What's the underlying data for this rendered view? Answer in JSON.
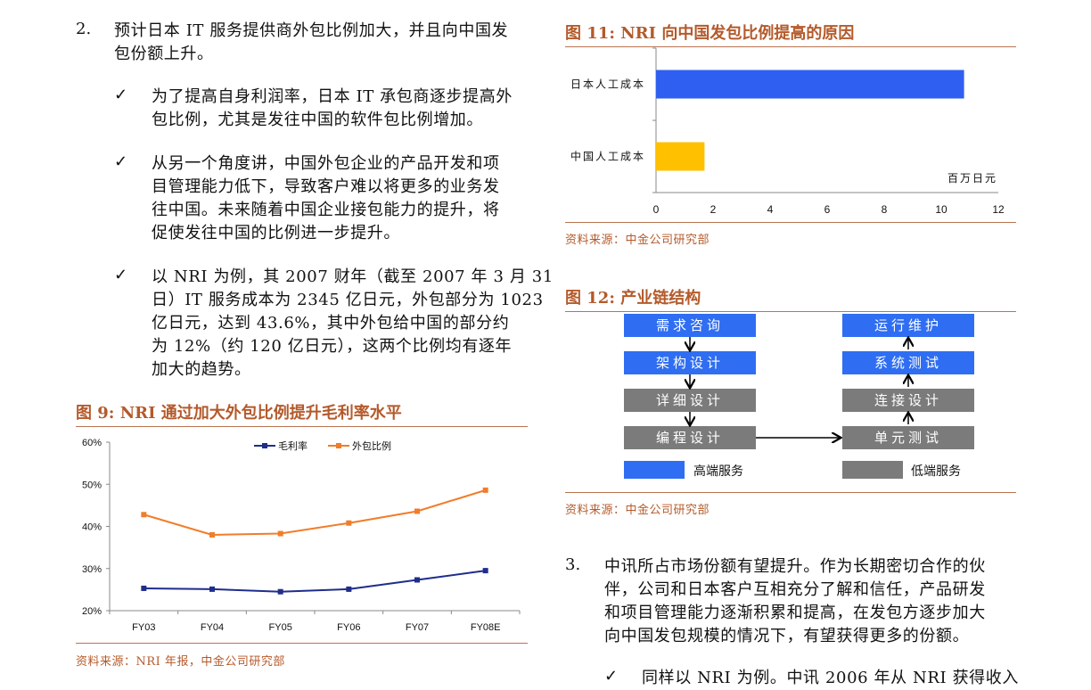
{
  "left": {
    "item2": {
      "number": "2.",
      "line1": "预计日本 IT 服务提供商外包比例加大，并且向中国发",
      "line2": "包份额上升。"
    },
    "bullets": [
      {
        "mark": "✓",
        "lines": [
          "为了提高自身利润率，日本 IT 承包商逐步提高外",
          "包比例，尤其是发往中国的软件包比例增加。"
        ]
      },
      {
        "mark": "✓",
        "lines": [
          "从另一个角度讲，中国外包企业的产品开发和项",
          "目管理能力低下，导致客户难以将更多的业务发",
          "往中国。未来随着中国企业接包能力的提升，将",
          "促使发往中国的比例进一步提升。"
        ]
      },
      {
        "mark": "✓",
        "lines": [
          "以 NRI 为例，其 2007 财年（截至 2007 年 3 月 31",
          "日）IT 服务成本为 2345 亿日元，外包部分为 1023",
          "亿日元，达到 43.6%，其中外包给中国的部分约",
          "为 12%（约 120 亿日元），这两个比例均有逐年",
          "加大的趋势。"
        ]
      }
    ],
    "fig9": {
      "title": "图 9:  NRI 通过加大外包比例提升毛利率水平",
      "source": "资料来源：NRI 年报，中金公司研究部"
    }
  },
  "right": {
    "fig11": {
      "title": "图 11:  NRI 向中国发包比例提高的原因",
      "unit": "百万日元",
      "source": "资料来源：中金公司研究部"
    },
    "fig12": {
      "title": "图 12:  产业链结构",
      "left_boxes": [
        "需求咨询",
        "架构设计",
        "详细设计",
        "编程设计"
      ],
      "right_boxes": [
        "运行维护",
        "系统测试",
        "连接设计",
        "单元测试"
      ],
      "legend_high": "高端服务",
      "legend_low": "低端服务",
      "source": "资料来源：中金公司研究部"
    },
    "item3": {
      "number": "3.",
      "lines": [
        "中讯所占市场份额有望提升。作为长期密切合作的伙",
        "伴，公司和日本客户互相充分了解和信任，产品研发",
        "和项目管理能力逐渐积累和提高，在发包方逐步加大",
        "向中国发包规模的情况下，有望获得更多的份额。"
      ]
    },
    "bullet_last": {
      "mark": "✓",
      "text": "同样以 NRI 为例。中讯 2006 年从 NRI 获得收入"
    }
  },
  "chart_data": [
    {
      "type": "line",
      "categories": [
        "FY03",
        "FY04",
        "FY05",
        "FY06",
        "FY07",
        "FY08E"
      ],
      "series": [
        {
          "name": "毛利率",
          "color": "#1f2d8c",
          "values": [
            25.3,
            25.1,
            24.5,
            25.1,
            27.3,
            29.5
          ]
        },
        {
          "name": "外包比例",
          "color": "#f07d2a",
          "values": [
            42.8,
            38.0,
            38.3,
            40.8,
            43.6,
            48.6
          ]
        }
      ],
      "ylim": [
        20,
        60
      ],
      "yticks": [
        "20%",
        "30%",
        "40%",
        "50%",
        "60%"
      ],
      "ytick_values": [
        20,
        30,
        40,
        50,
        60
      ],
      "legend": "top-center",
      "grid": false
    },
    {
      "type": "bar",
      "orientation": "horizontal",
      "categories": [
        "日本人工成本",
        "中国人工成本"
      ],
      "values": [
        10.8,
        1.7
      ],
      "colors": [
        "#2f5ff0",
        "#ffc000"
      ],
      "xlim": [
        0,
        12
      ],
      "xticks": [
        "0",
        "2",
        "4",
        "6",
        "8",
        "10",
        "12"
      ],
      "xtick_values": [
        0,
        2,
        4,
        6,
        8,
        10,
        12
      ],
      "grid": false
    }
  ]
}
